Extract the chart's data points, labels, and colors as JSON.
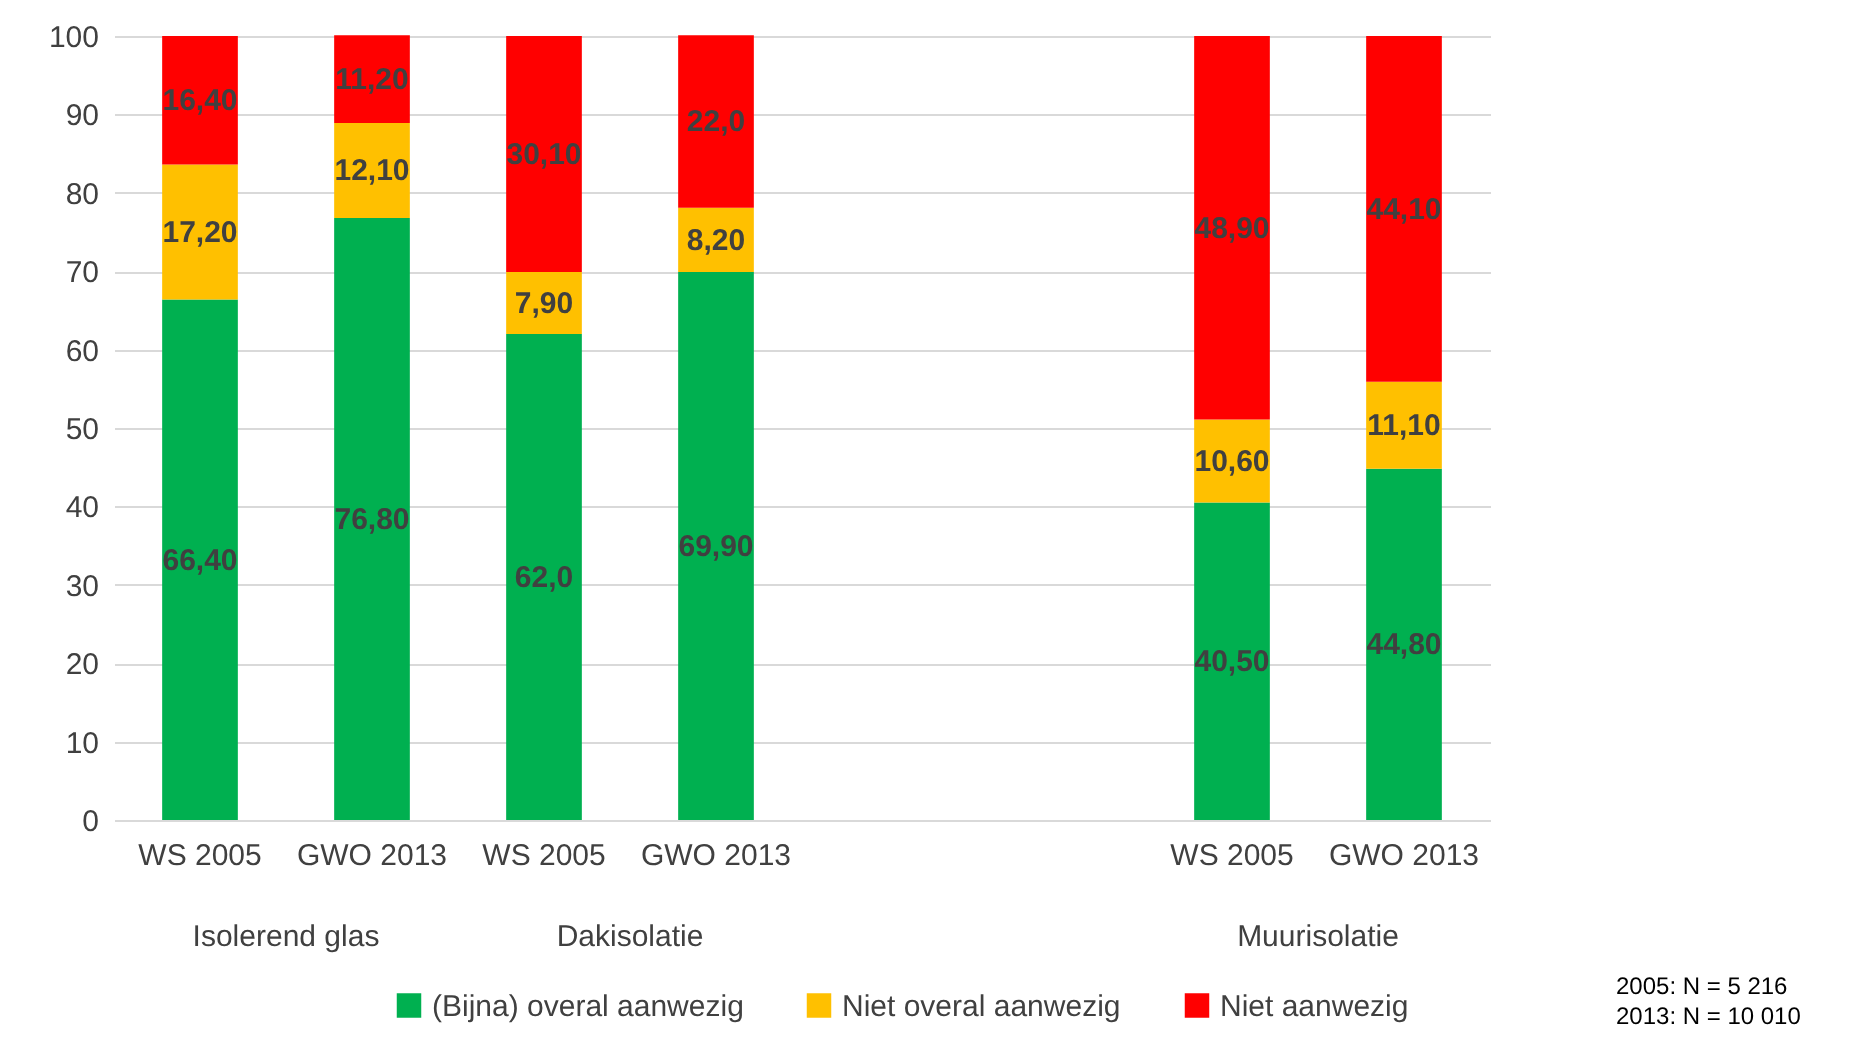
{
  "chart_data": {
    "type": "bar",
    "stacked": true,
    "categories": [
      "WS 2005",
      "GWO 2013",
      "WS 2005",
      "GWO 2013",
      null,
      null,
      "WS 2005",
      "GWO 2013"
    ],
    "series": [
      {
        "name": "(Bijna) overal aanwezig",
        "color": "#00b050",
        "values": [
          66.4,
          76.8,
          62.0,
          69.9,
          null,
          null,
          40.5,
          44.8
        ],
        "value_labels": [
          "66,40",
          "76,80",
          "62,0",
          "69,90",
          null,
          null,
          "40,50",
          "44,80"
        ]
      },
      {
        "name": "Niet overal aanwezig",
        "color": "#ffc000",
        "values": [
          17.2,
          12.1,
          7.9,
          8.2,
          null,
          null,
          10.6,
          11.1
        ],
        "value_labels": [
          "17,20",
          "12,10",
          "7,90",
          "8,20",
          null,
          null,
          "10,60",
          "11,10"
        ]
      },
      {
        "name": "Niet aanwezig",
        "color": "#ff0000",
        "values": [
          16.4,
          11.2,
          30.1,
          22.0,
          null,
          null,
          48.9,
          44.1
        ],
        "value_labels": [
          "16,40",
          "11,20",
          "30,10",
          "22,0",
          null,
          null,
          "48,90",
          "44,10"
        ]
      }
    ],
    "ylim": [
      0,
      100
    ],
    "yticks": [
      0,
      10,
      20,
      30,
      40,
      50,
      60,
      70,
      80,
      90,
      100
    ],
    "grid": "y",
    "legend": "bottom",
    "annotations": [
      "Isolerend glas",
      "Dakisolatie",
      "Muurisolatie",
      "2005: N = 5 216",
      "2013: N = 10 010"
    ]
  }
}
